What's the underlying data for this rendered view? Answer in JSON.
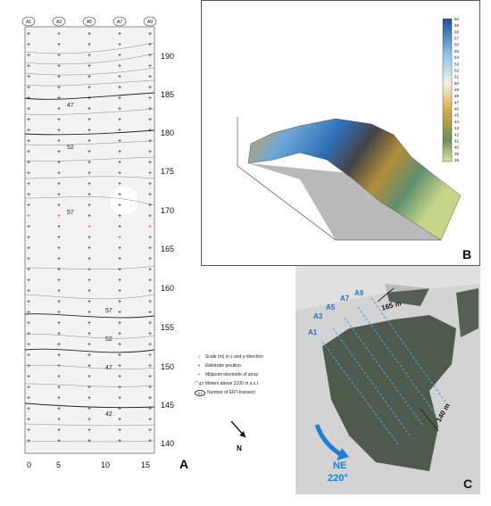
{
  "panel_a": {
    "letter": "A",
    "transects": [
      "A1",
      "A3",
      "A5",
      "A7",
      "A9"
    ],
    "x_ticks": [
      "0",
      "5",
      "10",
      "15"
    ],
    "y_ticks": [
      "190",
      "185",
      "180",
      "175",
      "170",
      "165",
      "160",
      "155",
      "150",
      "145",
      "140"
    ],
    "contour_labels": [
      "47",
      "52",
      "57",
      "57",
      "52",
      "47",
      "42"
    ]
  },
  "legend": {
    "items": [
      {
        "symbol": "○",
        "label": "Scale (m) in x and y-direction"
      },
      {
        "symbol": "+",
        "label": "Elektrode position"
      },
      {
        "symbol": "+",
        "label": "Midpoint electrode of array",
        "color": "#d33"
      },
      {
        "symbol": "⌒47",
        "label": "Meters above 3100 m a.s.l."
      },
      {
        "symbol": "A1",
        "label": "Number of ERT-transect"
      }
    ],
    "north": "N"
  },
  "panel_b": {
    "letter": "B",
    "colorbar_ticks": [
      "60",
      "59",
      "58",
      "57",
      "56",
      "55",
      "54",
      "53",
      "52",
      "51",
      "50",
      "49",
      "48",
      "47",
      "46",
      "45",
      "44",
      "43",
      "42",
      "41",
      "40",
      "39",
      "38"
    ]
  },
  "panel_c": {
    "letter": "C",
    "transects": [
      "A1",
      "A3",
      "A5",
      "A7",
      "A9"
    ],
    "dim_top": "165 m",
    "dim_right": "140 m",
    "direction": "NE",
    "bearing": "220°"
  },
  "colors": {
    "transect_blue": "#4aa3e0",
    "midpoint_red": "#d33"
  }
}
